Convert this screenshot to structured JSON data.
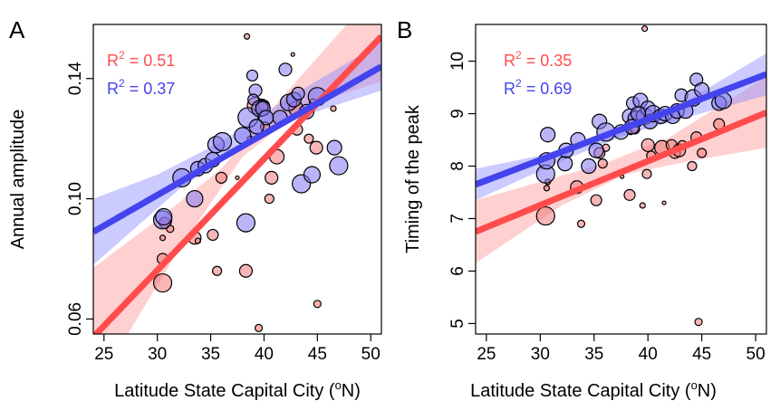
{
  "chart_data": [
    {
      "type": "scatter",
      "panel_label": "A",
      "xlabel": "Latitude State Capital City (",
      "xlabel_sup": "o",
      "xlabel_tail": "N)",
      "ylabel": "Annual amplitude",
      "xlim": [
        24,
        51
      ],
      "ylim": [
        0.055,
        0.158
      ],
      "x_ticks": [
        25,
        30,
        35,
        40,
        45,
        50
      ],
      "y_ticks": [
        0.06,
        0.1,
        0.14
      ],
      "y_tick_labels": [
        "0.06",
        "0.10",
        "0.14"
      ],
      "grid": false,
      "r2_prefix": "R",
      "r2_sup": "2",
      "series": [
        {
          "color": "#ff4d4d",
          "fill": "rgba(240,120,120,0.55)",
          "band": "rgba(255,150,150,0.45)",
          "r2_value": " = 0.51",
          "fit": {
            "x1": 24,
            "y1": 0.054,
            "x2": 51,
            "y2": 0.154
          },
          "band_low": [
            [
              24,
              0.036
            ],
            [
              32,
              0.083
            ],
            [
              38,
              0.114
            ],
            [
              44,
              0.131
            ],
            [
              51,
              0.139
            ]
          ],
          "band_high": [
            [
              24,
              0.077
            ],
            [
              30,
              0.093
            ],
            [
              36,
              0.11
            ],
            [
              42,
              0.135
            ],
            [
              51,
              0.171
            ]
          ],
          "points": [
            [
              30.5,
              0.072,
              10
            ],
            [
              30.5,
              0.08,
              6
            ],
            [
              30.5,
              0.087,
              3
            ],
            [
              30.7,
              0.092,
              6
            ],
            [
              31.2,
              0.09,
              4
            ],
            [
              33.5,
              0.087,
              7
            ],
            [
              33.8,
              0.086,
              3
            ],
            [
              35.2,
              0.088,
              6
            ],
            [
              35.6,
              0.076,
              5
            ],
            [
              36.0,
              0.107,
              6
            ],
            [
              37.5,
              0.107,
              2
            ],
            [
              38.3,
              0.076,
              7
            ],
            [
              38.4,
              0.154,
              3
            ],
            [
              39.2,
              0.131,
              9
            ],
            [
              39.5,
              0.057,
              4
            ],
            [
              39.8,
              0.131,
              7
            ],
            [
              40.0,
              0.131,
              6
            ],
            [
              40.1,
              0.124,
              5
            ],
            [
              40.7,
              0.107,
              7
            ],
            [
              41.2,
              0.114,
              8
            ],
            [
              42.7,
              0.148,
              2
            ],
            [
              43.0,
              0.13,
              8
            ],
            [
              43.1,
              0.123,
              6
            ],
            [
              44.2,
              0.12,
              5
            ],
            [
              44.6,
              0.132,
              4
            ],
            [
              44.9,
              0.117,
              7
            ],
            [
              45.0,
              0.065,
              4
            ],
            [
              46.5,
              0.13,
              3
            ],
            [
              38.7,
              0.12,
              3
            ],
            [
              40.5,
              0.1,
              5
            ]
          ]
        },
        {
          "color": "#4444ee",
          "fill": "rgba(130,120,240,0.55)",
          "band": "rgba(140,140,255,0.45)",
          "r2_value": " = 0.37",
          "fit": {
            "x1": 24,
            "y1": 0.089,
            "x2": 51,
            "y2": 0.144
          },
          "band_low": [
            [
              24,
              0.078
            ],
            [
              32,
              0.103
            ],
            [
              38,
              0.118
            ],
            [
              44,
              0.128
            ],
            [
              51,
              0.136
            ]
          ],
          "band_high": [
            [
              24,
              0.1
            ],
            [
              30,
              0.108
            ],
            [
              36,
              0.119
            ],
            [
              42,
              0.133
            ],
            [
              51,
              0.152
            ]
          ],
          "points": [
            [
              30.5,
              0.093,
              10
            ],
            [
              30.6,
              0.094,
              9
            ],
            [
              32.3,
              0.107,
              10
            ],
            [
              33.5,
              0.1,
              9
            ],
            [
              33.8,
              0.11,
              8
            ],
            [
              34.5,
              0.111,
              8
            ],
            [
              35.2,
              0.113,
              8
            ],
            [
              35.5,
              0.118,
              9
            ],
            [
              36.1,
              0.119,
              10
            ],
            [
              38.0,
              0.121,
              9
            ],
            [
              38.3,
              0.092,
              10
            ],
            [
              38.5,
              0.127,
              11
            ],
            [
              38.9,
              0.141,
              6
            ],
            [
              39.2,
              0.136,
              7
            ],
            [
              39.0,
              0.133,
              6
            ],
            [
              39.6,
              0.13,
              9
            ],
            [
              39.9,
              0.13,
              8
            ],
            [
              40.2,
              0.127,
              8
            ],
            [
              41.5,
              0.127,
              8
            ],
            [
              42.0,
              0.143,
              7
            ],
            [
              42.3,
              0.132,
              9
            ],
            [
              42.8,
              0.133,
              8
            ],
            [
              43.2,
              0.135,
              7
            ],
            [
              43.5,
              0.105,
              10
            ],
            [
              44.0,
              0.129,
              8
            ],
            [
              44.5,
              0.108,
              9
            ],
            [
              45.0,
              0.134,
              10
            ],
            [
              46.6,
              0.117,
              8
            ],
            [
              47.0,
              0.111,
              10
            ],
            [
              39.3,
              0.124,
              8
            ]
          ]
        }
      ]
    },
    {
      "type": "scatter",
      "panel_label": "B",
      "xlabel": "Latitude State Capital City (",
      "xlabel_sup": "o",
      "xlabel_tail": "N)",
      "ylabel": "Timing of the peak",
      "xlim": [
        24,
        51
      ],
      "ylim": [
        4.8,
        10.7
      ],
      "x_ticks": [
        25,
        30,
        35,
        40,
        45,
        50
      ],
      "y_ticks": [
        5,
        6,
        7,
        8,
        9,
        10
      ],
      "y_tick_labels": [
        "5",
        "6",
        "7",
        "8",
        "9",
        "10"
      ],
      "grid": false,
      "r2_prefix": "R",
      "r2_sup": "2",
      "series": [
        {
          "color": "#ff4d4d",
          "fill": "rgba(240,120,120,0.55)",
          "band": "rgba(255,150,150,0.45)",
          "r2_value": " = 0.35",
          "fit": {
            "x1": 24,
            "y1": 6.75,
            "x2": 51,
            "y2": 9.02
          },
          "band_low": [
            [
              24,
              6.15
            ],
            [
              32,
              7.25
            ],
            [
              38,
              7.85
            ],
            [
              44,
              8.1
            ],
            [
              51,
              8.35
            ]
          ],
          "band_high": [
            [
              24,
              7.35
            ],
            [
              30,
              7.7
            ],
            [
              36,
              8.05
            ],
            [
              42,
              8.55
            ],
            [
              51,
              9.7
            ]
          ],
          "points": [
            [
              30.5,
              7.05,
              10
            ],
            [
              30.6,
              7.58,
              3
            ],
            [
              30.7,
              7.7,
              3
            ],
            [
              33.4,
              7.6,
              7
            ],
            [
              33.8,
              6.9,
              4
            ],
            [
              35.2,
              7.35,
              6
            ],
            [
              35.5,
              8.25,
              6
            ],
            [
              35.8,
              8.05,
              5
            ],
            [
              36.1,
              8.35,
              4
            ],
            [
              37.6,
              7.8,
              2
            ],
            [
              38.3,
              7.45,
              6
            ],
            [
              38.4,
              8.65,
              3
            ],
            [
              39.3,
              8.95,
              6
            ],
            [
              39.5,
              7.25,
              3
            ],
            [
              39.7,
              10.62,
              3
            ],
            [
              39.9,
              7.85,
              5
            ],
            [
              40.0,
              8.4,
              7
            ],
            [
              40.3,
              8.2,
              5
            ],
            [
              41.5,
              7.3,
              2
            ],
            [
              41.3,
              8.35,
              8
            ],
            [
              42.2,
              8.4,
              6
            ],
            [
              42.5,
              8.25,
              6
            ],
            [
              42.9,
              8.3,
              7
            ],
            [
              43.2,
              8.4,
              5
            ],
            [
              44.1,
              8.0,
              5
            ],
            [
              44.5,
              8.55,
              6
            ],
            [
              44.7,
              5.03,
              4
            ],
            [
              45.0,
              8.25,
              5
            ],
            [
              46.6,
              8.8,
              6
            ],
            [
              38.8,
              8.7,
              5
            ]
          ]
        },
        {
          "color": "#4444ee",
          "fill": "rgba(130,120,240,0.55)",
          "band": "rgba(140,140,255,0.45)",
          "r2_value": " = 0.69",
          "fit": {
            "x1": 24,
            "y1": 7.65,
            "x2": 51,
            "y2": 9.75
          },
          "band_low": [
            [
              24,
              7.35
            ],
            [
              32,
              8.1
            ],
            [
              38,
              8.6
            ],
            [
              44,
              8.95
            ],
            [
              51,
              9.35
            ]
          ],
          "band_high": [
            [
              24,
              7.95
            ],
            [
              30,
              8.2
            ],
            [
              36,
              8.6
            ],
            [
              42,
              9.05
            ],
            [
              51,
              10.15
            ]
          ],
          "points": [
            [
              30.5,
              7.85,
              10
            ],
            [
              30.6,
              8.1,
              9
            ],
            [
              30.7,
              8.6,
              8
            ],
            [
              32.3,
              8.05,
              8
            ],
            [
              32.4,
              8.3,
              8
            ],
            [
              33.5,
              8.5,
              8
            ],
            [
              34.5,
              8.0,
              8
            ],
            [
              35.2,
              8.3,
              8
            ],
            [
              35.5,
              8.85,
              8
            ],
            [
              36.1,
              8.65,
              10
            ],
            [
              37.5,
              8.65,
              8
            ],
            [
              38.3,
              8.95,
              8
            ],
            [
              38.6,
              9.2,
              7
            ],
            [
              38.9,
              8.9,
              9
            ],
            [
              39.3,
              9.25,
              8
            ],
            [
              39.7,
              8.95,
              9
            ],
            [
              40.0,
              9.1,
              8
            ],
            [
              40.2,
              8.85,
              8
            ],
            [
              40.5,
              9.0,
              9
            ],
            [
              41.2,
              8.95,
              8
            ],
            [
              41.6,
              9.0,
              8
            ],
            [
              42.3,
              8.95,
              8
            ],
            [
              42.7,
              9.05,
              8
            ],
            [
              43.1,
              9.35,
              7
            ],
            [
              43.5,
              9.05,
              8
            ],
            [
              44.2,
              9.3,
              9
            ],
            [
              44.5,
              9.65,
              7
            ],
            [
              45.0,
              9.45,
              8
            ],
            [
              46.6,
              9.2,
              8
            ],
            [
              47.0,
              9.25,
              9
            ],
            [
              38.5,
              8.75,
              8
            ],
            [
              39.1,
              9.0,
              8
            ]
          ]
        }
      ]
    }
  ]
}
